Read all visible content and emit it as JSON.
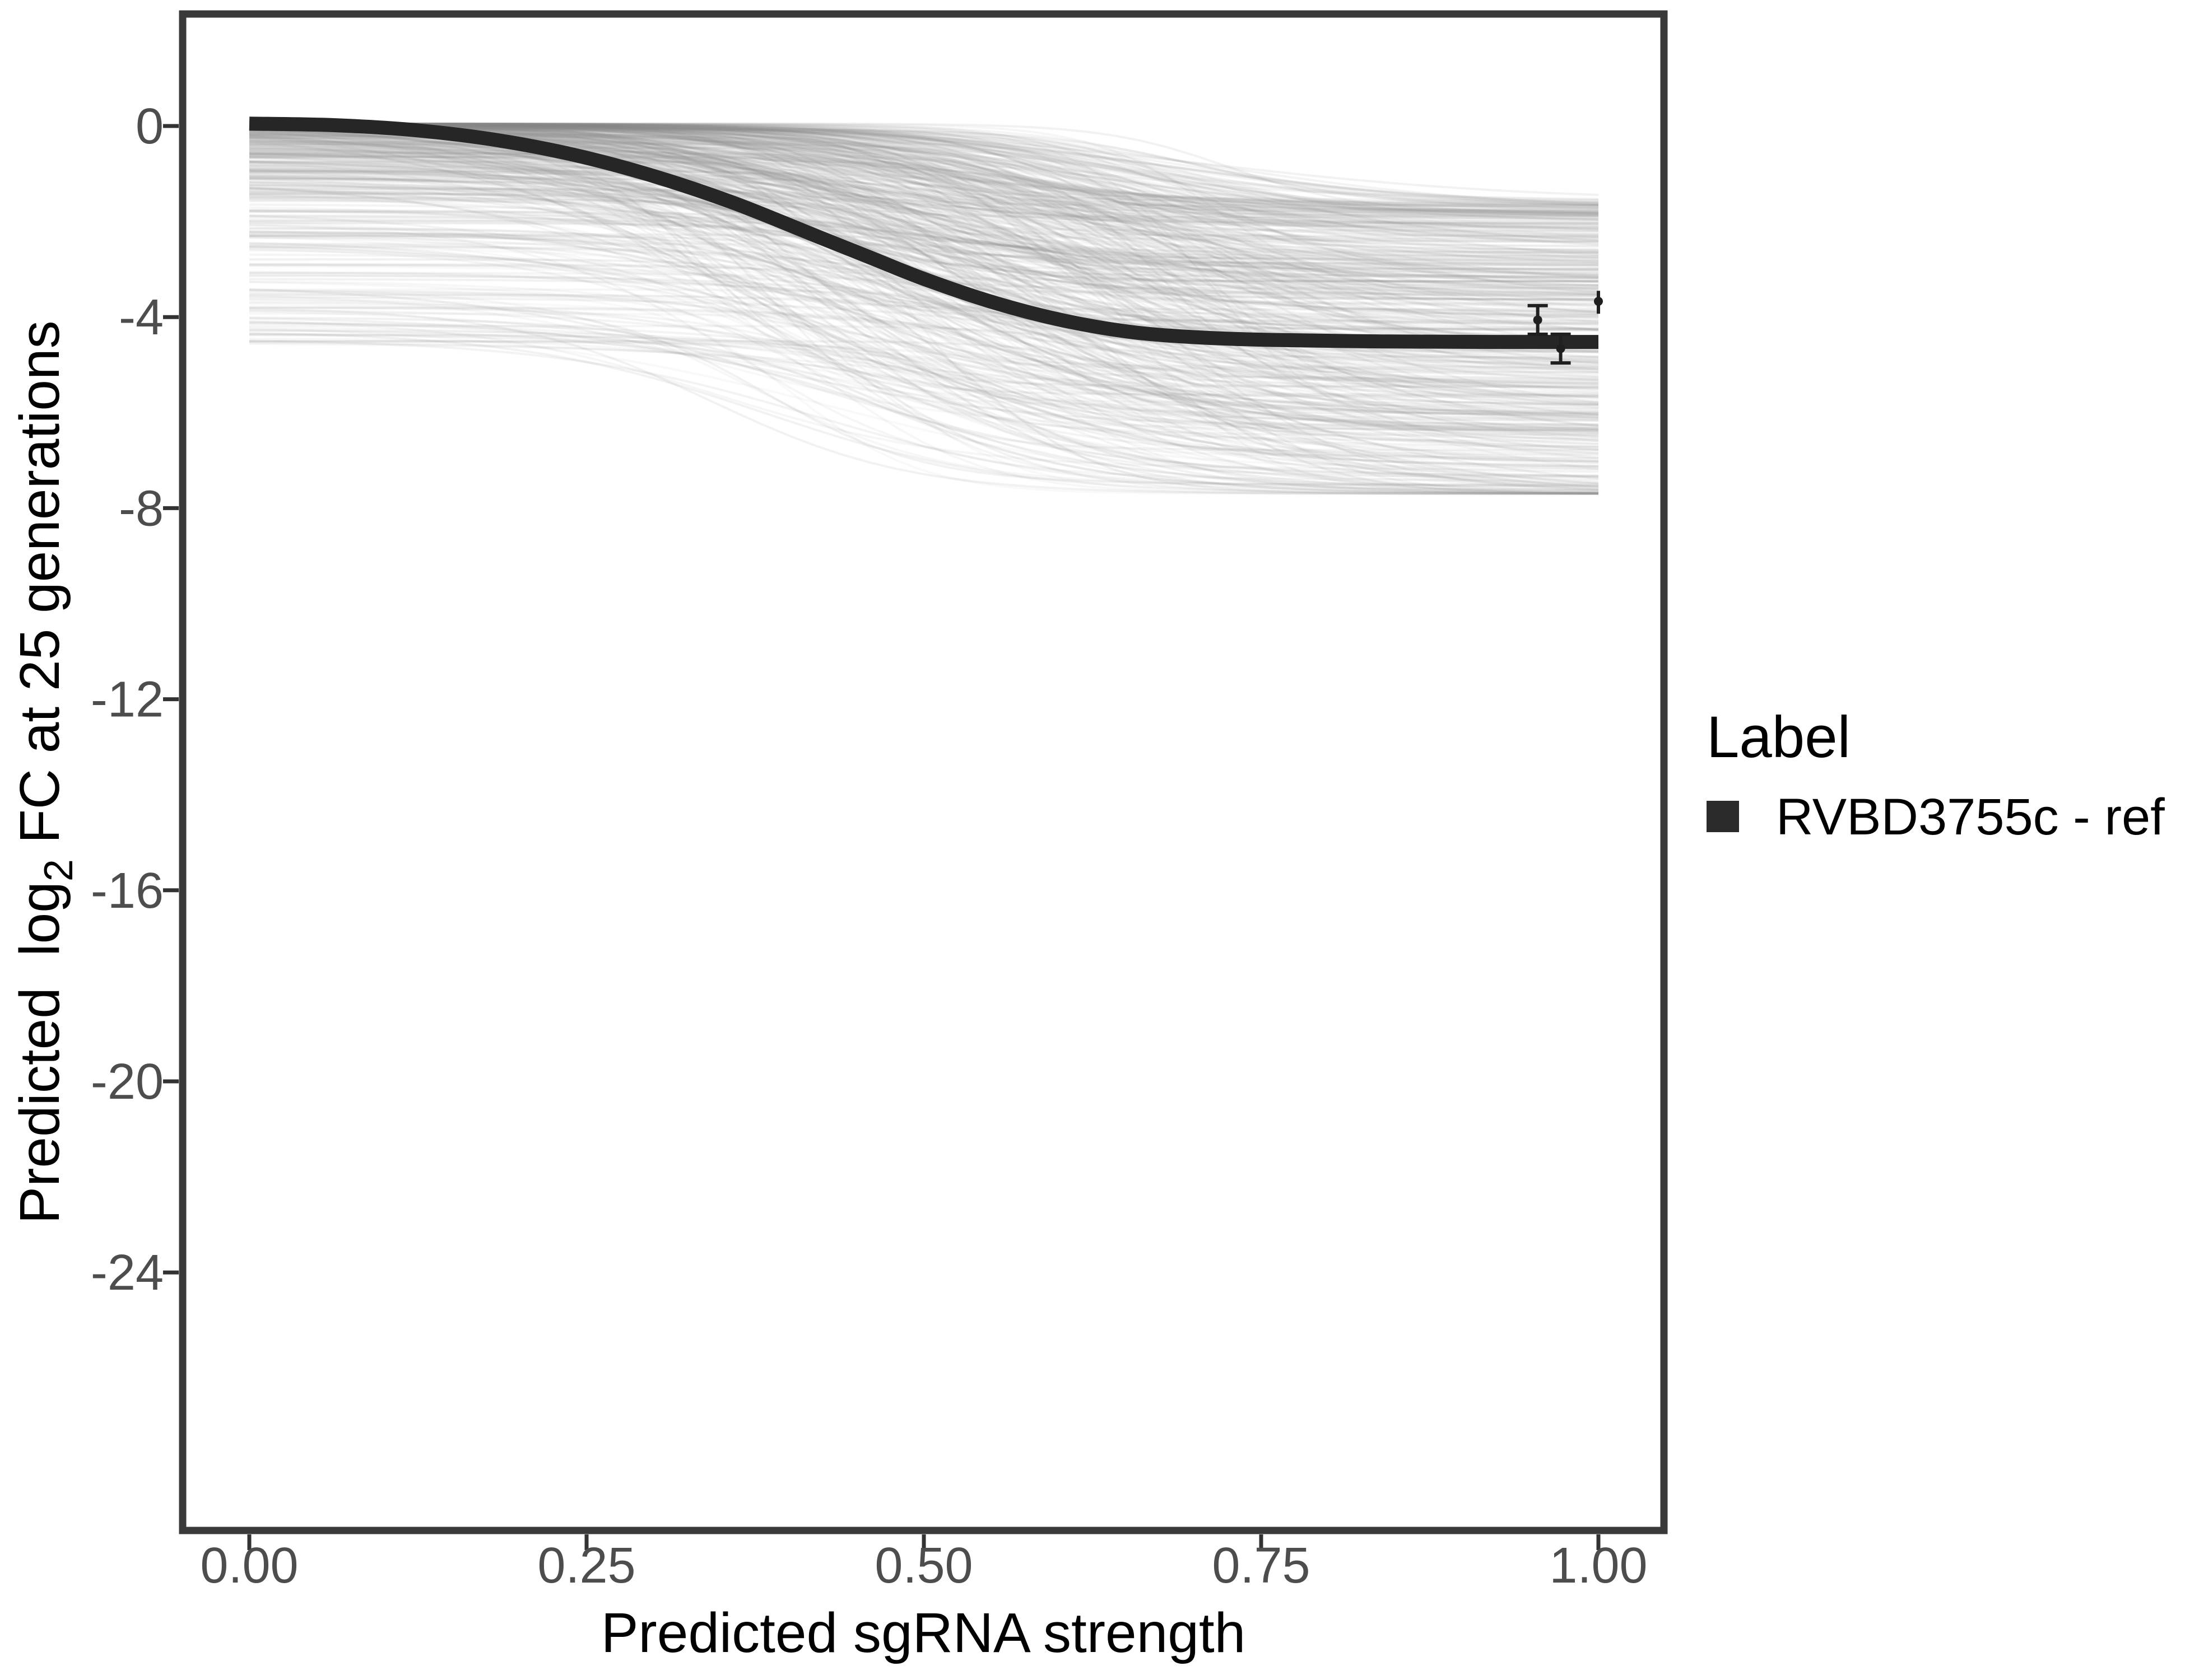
{
  "figure": {
    "background": "#ffffff",
    "panel_border_color": "#3a3a3a",
    "tick_color": "#333333",
    "tick_label_color": "#4d4d4d"
  },
  "x_axis": {
    "title": "Predicted sgRNA strength",
    "tick_labels": [
      "0.00",
      "0.25",
      "0.50",
      "0.75",
      "1.00"
    ],
    "tick_values": [
      0,
      0.25,
      0.5,
      0.75,
      1.0
    ]
  },
  "y_axis": {
    "title_pre": "Predicted  log",
    "title_sub": "2",
    "title_post": " FC at 25 generations",
    "tick_labels": [
      "0",
      "-4",
      "-8",
      "-12",
      "-16",
      "-20",
      "-24"
    ],
    "tick_values": [
      0,
      -4,
      -8,
      -12,
      -16,
      -20,
      -24
    ]
  },
  "legend": {
    "title": "Label",
    "items": [
      {
        "label": "RVBD3755c - ref",
        "swatch_color": "#2b2b2b"
      }
    ]
  },
  "chart_data": {
    "type": "line",
    "title": "",
    "xlabel": "Predicted sgRNA strength",
    "ylabel": "Predicted log2 FC at 25 generations",
    "xlim": [
      -0.05,
      1.05
    ],
    "ylim": [
      -29.4,
      2.3
    ],
    "x_ticks": [
      0,
      0.25,
      0.5,
      0.75,
      1.0
    ],
    "y_ticks": [
      0,
      -4,
      -8,
      -12,
      -16,
      -20,
      -24
    ],
    "grid": "off",
    "legend_position": "right",
    "main_curve": {
      "name": "RVBD3755c - ref",
      "color": "#262626",
      "stroke_width": 25,
      "points": [
        [
          0.0,
          0.05
        ],
        [
          0.06,
          0.02
        ],
        [
          0.12,
          -0.08
        ],
        [
          0.18,
          -0.28
        ],
        [
          0.24,
          -0.6
        ],
        [
          0.3,
          -1.05
        ],
        [
          0.36,
          -1.62
        ],
        [
          0.42,
          -2.3
        ],
        [
          0.46,
          -2.75
        ],
        [
          0.5,
          -3.2
        ],
        [
          0.55,
          -3.68
        ],
        [
          0.6,
          -4.05
        ],
        [
          0.65,
          -4.3
        ],
        [
          0.7,
          -4.42
        ],
        [
          0.76,
          -4.48
        ],
        [
          0.84,
          -4.51
        ],
        [
          0.92,
          -4.52
        ],
        [
          1.0,
          -4.52
        ]
      ]
    },
    "ensemble": {
      "description": "posterior sample sigmoid curves",
      "count": 520,
      "seed": 20240711,
      "color": "#8a8a8a",
      "base_opacity": 0.05,
      "opacity_jitter": 0.07,
      "stroke_width": 4,
      "x_range": [
        0,
        1
      ],
      "start_value_range": [
        0.05,
        -4.6
      ],
      "end_value_range": [
        -1.55,
        -7.7
      ],
      "drop_range": [
        1.35,
        7.15
      ],
      "midpoint_range": [
        0.33,
        0.73
      ],
      "slope_range": [
        0.045,
        0.13
      ]
    },
    "error_points": [
      {
        "x": 0.955,
        "y": -4.06,
        "ymin": -4.36,
        "ymax": -3.76,
        "caps": true
      },
      {
        "x": 0.972,
        "y": -4.66,
        "ymin": -4.96,
        "ymax": -4.36,
        "caps": true
      },
      {
        "x": 1.0,
        "y": -3.67,
        "ymin": -3.93,
        "ymax": -3.45,
        "caps": false
      }
    ],
    "error_point_style": {
      "color": "#1f1f1f",
      "marker_radius": 8,
      "stem_width": 6,
      "cap_half_width": 18
    }
  }
}
